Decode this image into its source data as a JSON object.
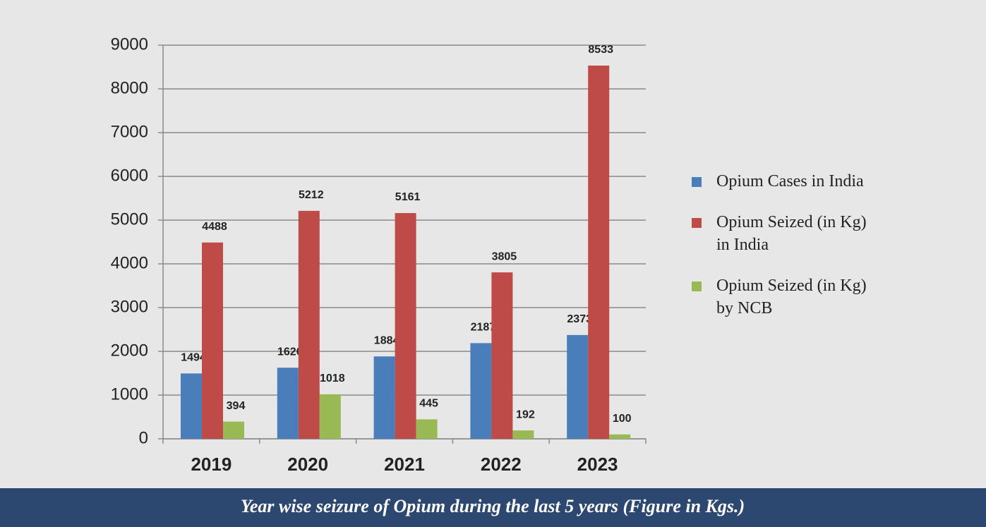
{
  "chart_data": {
    "type": "bar",
    "caption": "Year wise seizure of Opium during the last 5 years (Figure in Kgs.)",
    "categories": [
      "2019",
      "2020",
      "2021",
      "2022",
      "2023"
    ],
    "series": [
      {
        "name": "Opium Cases in India",
        "color": "#4a7ebb",
        "values": [
          1494,
          1626,
          1884,
          2187,
          2373
        ]
      },
      {
        "name": "Opium Seized (in Kg) in India",
        "color": "#be4b48",
        "values": [
          4488,
          5212,
          5161,
          3805,
          8533
        ]
      },
      {
        "name": "Opium Seized (in Kg) by NCB",
        "color": "#98b954",
        "values": [
          394,
          1018,
          445,
          192,
          100
        ]
      }
    ],
    "ylim": [
      0,
      9000
    ],
    "yticks": [
      0,
      1000,
      2000,
      3000,
      4000,
      5000,
      6000,
      7000,
      8000,
      9000
    ],
    "grid": true,
    "legend": "right"
  }
}
